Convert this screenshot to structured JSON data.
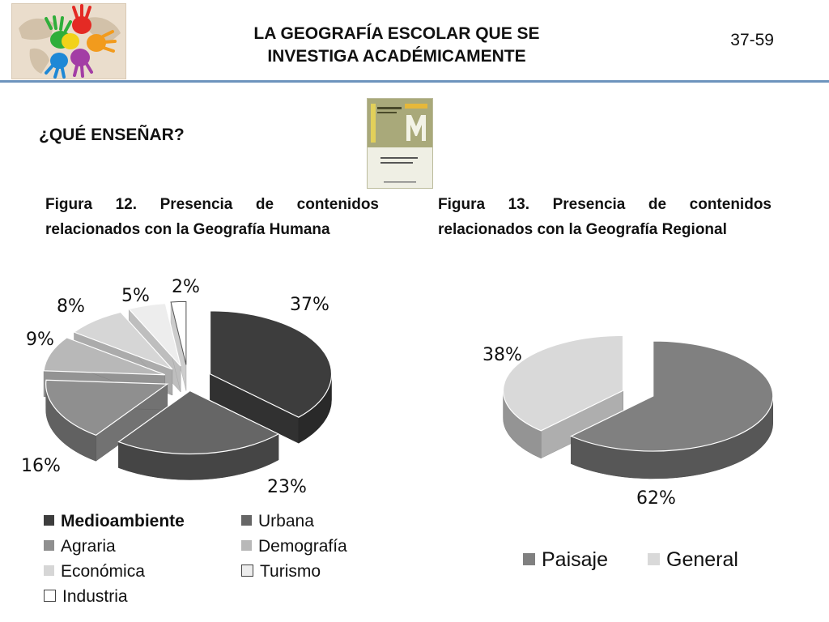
{
  "header": {
    "title_line1": "LA GEOGRAFÍA ESCOLAR QUE SE",
    "title_line2": "INVESTIGA ACADÉMICAMENTE",
    "page_number": "37-59"
  },
  "section_title": "¿QUÉ ENSEÑAR?",
  "chart_data": [
    {
      "type": "pie",
      "title": "Figura 12. Presencia de contenidos relacionados con la Geografía Humana",
      "categories": [
        "Medioambiente",
        "Urbana",
        "Agraria",
        "Demografía",
        "Económica",
        "Turismo",
        "Industria"
      ],
      "values": [
        37,
        23,
        16,
        9,
        8,
        5,
        2
      ],
      "labels": [
        "37%",
        "23%",
        "16%",
        "9%",
        "8%",
        "5%",
        "2%"
      ],
      "colors": [
        "#3d3d3d",
        "#666666",
        "#8f8f8f",
        "#b8b8b8",
        "#d6d6d6",
        "#ededed",
        "#ffffff"
      ],
      "legend": "bottom",
      "exploded": true,
      "three_d": true
    },
    {
      "type": "pie",
      "title": "Figura 13. Presencia de contenidos relacionados con la Geografía Regional",
      "categories": [
        "Paisaje",
        "General"
      ],
      "values": [
        62,
        38
      ],
      "labels": [
        "62%",
        "38%"
      ],
      "colors": [
        "#808080",
        "#d9d9d9"
      ],
      "legend": "bottom",
      "exploded": true,
      "three_d": true
    }
  ]
}
